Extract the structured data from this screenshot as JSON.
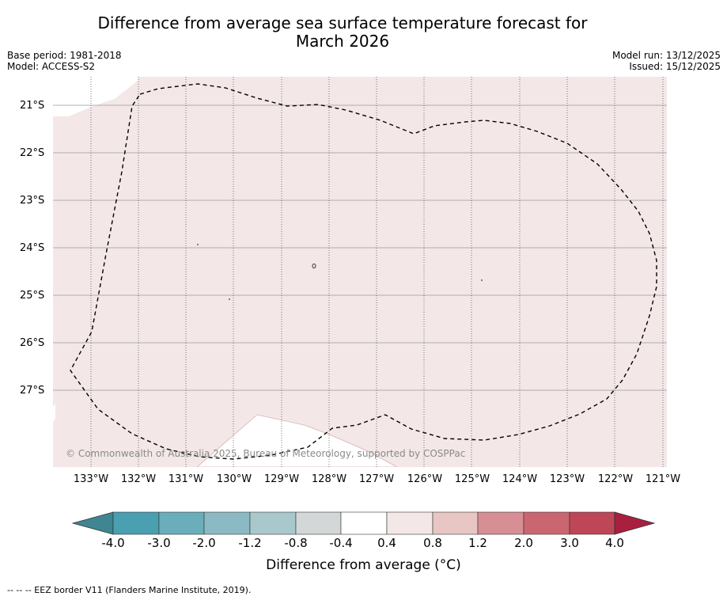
{
  "title": {
    "line1": "Difference from average sea surface temperature forecast for",
    "line2": "March 2026"
  },
  "meta": {
    "base_period": "Base period: 1981-2018",
    "model": "Model: ACCESS-S2",
    "model_run": "Model run: 13/12/2025",
    "issued": "Issued: 15/12/2025"
  },
  "map": {
    "extent_lon": [
      -133.8,
      -120.9
    ],
    "extent_lat": [
      -28.6,
      -20.4
    ],
    "lat_labels": [
      "21°S",
      "22°S",
      "23°S",
      "24°S",
      "25°S",
      "26°S",
      "27°S"
    ],
    "lon_labels": [
      "133°W",
      "132°W",
      "131°W",
      "130°W",
      "129°W",
      "128°W",
      "127°W",
      "126°W",
      "125°W",
      "124°W",
      "123°W",
      "122°W",
      "121°W"
    ],
    "fill_category": "0.4 to 0.8",
    "fill_color": "#f3e8e7",
    "copyright": "© Commonwealth of Australia 2025, Bureau of Meteorology, supported by COSPPac"
  },
  "colorbar": {
    "tick_labels": [
      "-4.0",
      "-3.0",
      "-2.0",
      "-1.2",
      "-0.8",
      "-0.4",
      "0.4",
      "0.8",
      "1.2",
      "2.0",
      "3.0",
      "4.0"
    ],
    "colors": [
      "#4a9fb0",
      "#6aaebb",
      "#8bbac4",
      "#a9c8cc",
      "#d3d7d8",
      "#ffffff",
      "#f3e8e7",
      "#e8c6c3",
      "#d88e95",
      "#ca6670",
      "#be4657"
    ],
    "under_color": "#3f8592",
    "over_color": "#a91f3f",
    "label": "Difference from average (°C)"
  },
  "source": "--  --  -- EEZ border V11 (Flanders Marine Institute, 2019)."
}
